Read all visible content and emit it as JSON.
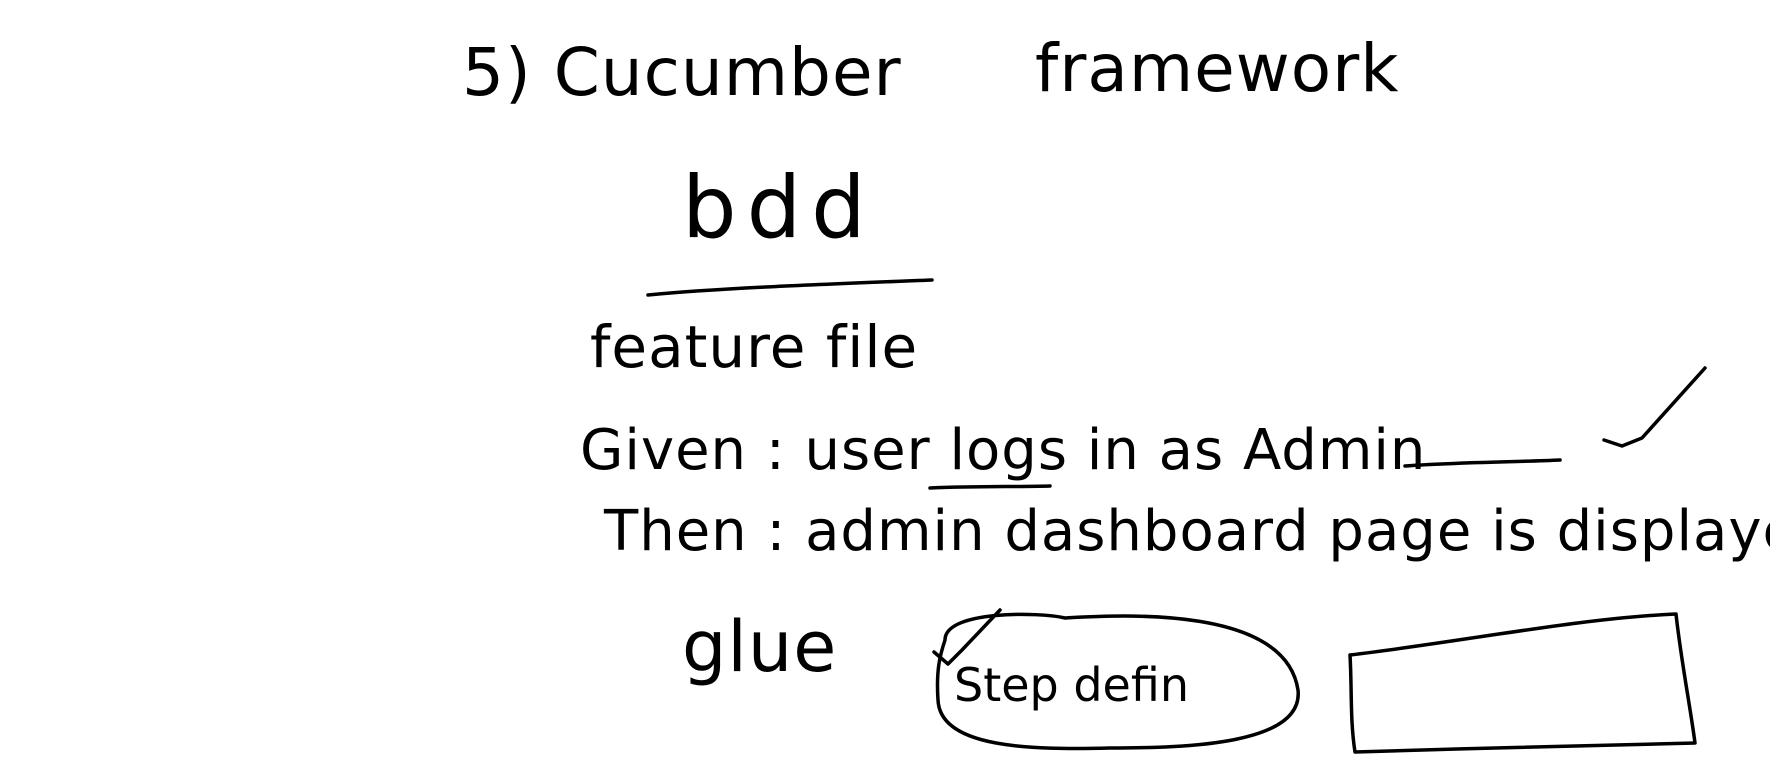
{
  "note": {
    "title": "5) Cucumber",
    "title_word2": "framework",
    "subtitle": "bdd",
    "section": "feature file",
    "given_line": "Given : user logs in as Admin",
    "then_line": "Then : admin dashboard page is displayed",
    "glue_label": "glue",
    "step_label": "Step defin",
    "ink_color": "#000000",
    "background_color": "#ffffff"
  }
}
